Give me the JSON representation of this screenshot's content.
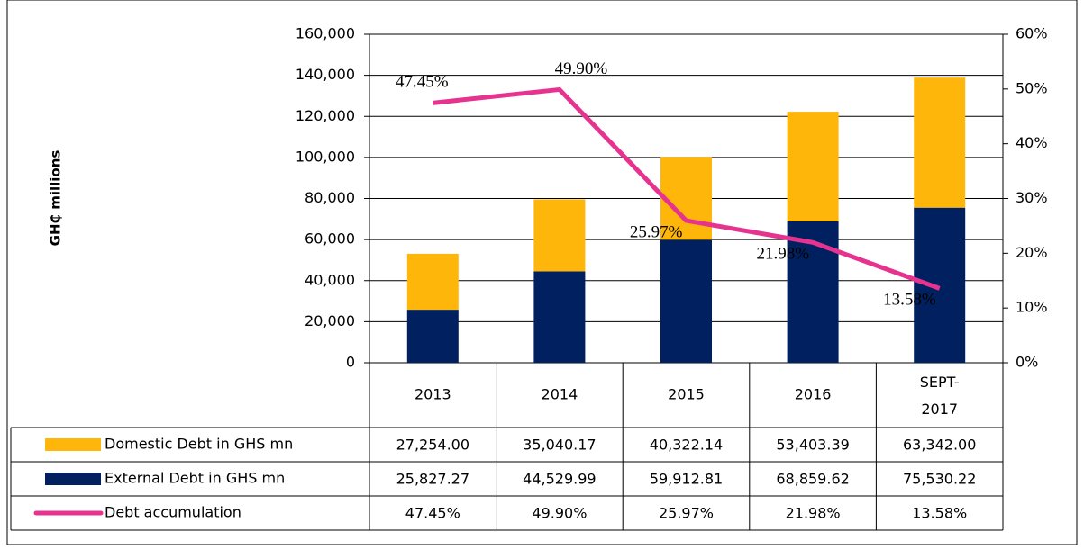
{
  "chart_data": {
    "type": "bar",
    "y_label": "GH₵ millions",
    "categories": [
      "2013",
      "2014",
      "2015",
      "2016",
      "SEPT-2017"
    ],
    "series": [
      {
        "name": "Domestic Debt in GHS mn",
        "color": "#FFB60A",
        "values": [
          27254.0,
          35040.17,
          40322.14,
          53403.39,
          63342.0
        ],
        "value_labels": [
          "27,254.00",
          "35,040.17",
          "40,322.14",
          "53,403.39",
          "63,342.00"
        ]
      },
      {
        "name": "External Debt in GHS mn",
        "color": "#002060",
        "values": [
          25827.27,
          44529.99,
          59912.81,
          68859.62,
          75530.22
        ],
        "value_labels": [
          "25,827.27",
          "44,529.99",
          "59,912.81",
          "68,859.62",
          "75,530.22"
        ]
      },
      {
        "name": "Debt accumulation",
        "type": "line",
        "axis": "y2",
        "color": "#E6338F",
        "values": [
          47.45,
          49.9,
          25.97,
          21.98,
          13.58
        ],
        "value_labels": [
          "47.45%",
          "49.90%",
          "25.97%",
          "21.98%",
          "13.58%"
        ]
      }
    ],
    "ylim": [
      0,
      160000
    ],
    "yticks": [
      0,
      {
        "value": 20000,
        "label": "20,000"
      },
      {
        "value": 40000,
        "label": "40,000"
      },
      {
        "value": 60000,
        "label": "60,000"
      },
      {
        "value": 80000,
        "label": "80,000"
      },
      {
        "value": 100000,
        "label": "100,000"
      },
      {
        "value": 120000,
        "label": "120,000"
      },
      {
        "value": 140000,
        "label": "140,000"
      },
      {
        "value": 160000,
        "label": "160,000"
      }
    ],
    "y2lim": [
      0,
      60
    ],
    "y2ticks": [
      {
        "value": 0,
        "label": "0%"
      },
      {
        "value": 10,
        "label": "10%"
      },
      {
        "value": 20,
        "label": "20%"
      },
      {
        "value": 30,
        "label": "30%"
      },
      {
        "value": 40,
        "label": "40%"
      },
      {
        "value": 50,
        "label": "50%"
      },
      {
        "value": 60,
        "label": "60%"
      }
    ],
    "grid": true
  }
}
